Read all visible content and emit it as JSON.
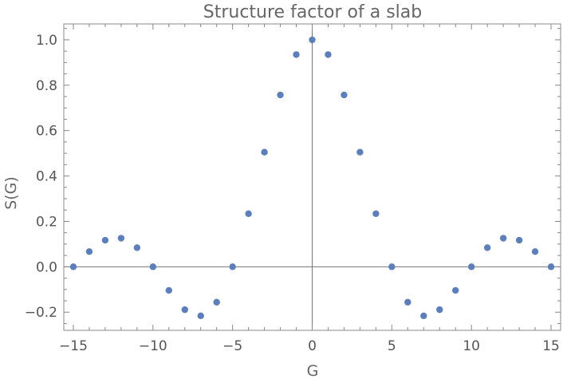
{
  "chart_data": {
    "type": "scatter",
    "title": "Structure factor of a slab",
    "xlabel": "G",
    "ylabel": "S(G)",
    "xlim": [
      -15.6,
      15.6
    ],
    "ylim": [
      -0.28,
      1.07
    ],
    "x_ticks": [
      -15,
      -10,
      -5,
      0,
      5,
      10,
      15
    ],
    "x_tick_labels": [
      "−15",
      "−10",
      "−5",
      "0",
      "5",
      "10",
      "15"
    ],
    "y_ticks": [
      -0.2,
      0.0,
      0.2,
      0.4,
      0.6,
      0.8,
      1.0
    ],
    "y_tick_labels": [
      "−0.2",
      "0.0",
      "0.2",
      "0.4",
      "0.6",
      "0.8",
      "1.0"
    ],
    "grid": false,
    "marker_color": "#5b7fbd",
    "series": [
      {
        "x": [
          -15,
          -14,
          -13,
          -12,
          -11,
          -10,
          -9,
          -8,
          -7,
          -6,
          -5,
          -4,
          -3,
          -2,
          -1,
          0,
          1,
          2,
          3,
          4,
          5,
          6,
          7,
          8,
          9,
          10,
          11,
          12,
          13,
          14,
          15
        ],
        "y": [
          0.0,
          0.067,
          0.117,
          0.126,
          0.084,
          0.0,
          -0.104,
          -0.189,
          -0.216,
          -0.156,
          0.0,
          0.234,
          0.505,
          0.757,
          0.935,
          1.0,
          0.935,
          0.757,
          0.505,
          0.234,
          0.0,
          -0.156,
          -0.216,
          -0.189,
          -0.104,
          0.0,
          0.084,
          0.126,
          0.117,
          0.067,
          0.0
        ]
      }
    ]
  }
}
